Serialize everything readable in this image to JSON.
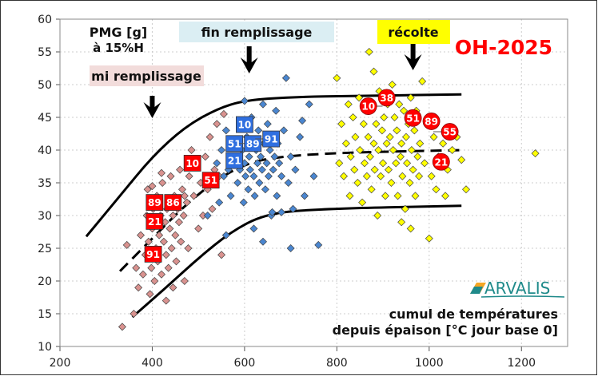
{
  "chart_data": {
    "type": "scatter",
    "title": "OH-2025",
    "ylabel_lines": [
      "PMG [g]",
      "à 15%H"
    ],
    "xlabel_lines": [
      "cumul de températures",
      "depuis épaison [°C jour base 0]"
    ],
    "xlim": [
      200,
      1300
    ],
    "ylim": [
      10,
      60
    ],
    "xticks": [
      200,
      400,
      600,
      800,
      1000,
      1200
    ],
    "yticks": [
      10,
      15,
      20,
      25,
      30,
      35,
      40,
      45,
      50,
      55,
      60
    ],
    "grid": true,
    "stage_annotations": [
      {
        "label": "mi remplissage",
        "color": "#f2dcdb",
        "arrow_x": 400
      },
      {
        "label": "fin remplissage",
        "color": "#dbeef3",
        "arrow_x": 610
      },
      {
        "label": "récolte",
        "color": "#ffff00",
        "arrow_x": 965
      }
    ],
    "series": [
      {
        "color": "#d9928f",
        "marker": "diamond",
        "points": [
          [
            335,
            13
          ],
          [
            345,
            25.5
          ],
          [
            360,
            15
          ],
          [
            365,
            22
          ],
          [
            370,
            19
          ],
          [
            375,
            27
          ],
          [
            380,
            21
          ],
          [
            385,
            24
          ],
          [
            388,
            30
          ],
          [
            390,
            34
          ],
          [
            392,
            26
          ],
          [
            395,
            18
          ],
          [
            398,
            22
          ],
          [
            400,
            28
          ],
          [
            402,
            31
          ],
          [
            405,
            20
          ],
          [
            408,
            25
          ],
          [
            410,
            33
          ],
          [
            412,
            23
          ],
          [
            415,
            27
          ],
          [
            418,
            30
          ],
          [
            420,
            21
          ],
          [
            422,
            35
          ],
          [
            425,
            26
          ],
          [
            428,
            29
          ],
          [
            430,
            24
          ],
          [
            432,
            31
          ],
          [
            435,
            22
          ],
          [
            438,
            28
          ],
          [
            440,
            36
          ],
          [
            442,
            25
          ],
          [
            445,
            30
          ],
          [
            448,
            33
          ],
          [
            450,
            27
          ],
          [
            452,
            23
          ],
          [
            455,
            31
          ],
          [
            458,
            29
          ],
          [
            460,
            37
          ],
          [
            462,
            26
          ],
          [
            465,
            34
          ],
          [
            468,
            30
          ],
          [
            470,
            20
          ],
          [
            475,
            32
          ],
          [
            478,
            25
          ],
          [
            480,
            36
          ],
          [
            485,
            40
          ],
          [
            490,
            33
          ],
          [
            495,
            38
          ],
          [
            500,
            28
          ],
          [
            505,
            35
          ],
          [
            510,
            30
          ],
          [
            515,
            39
          ],
          [
            520,
            34
          ],
          [
            525,
            42
          ],
          [
            530,
            31
          ],
          [
            535,
            37
          ],
          [
            540,
            44
          ],
          [
            545,
            36
          ],
          [
            550,
            24
          ],
          [
            555,
            45.5
          ],
          [
            420,
            36.5
          ],
          [
            400,
            34.5
          ],
          [
            470,
            33
          ],
          [
            445,
            19
          ],
          [
            430,
            17
          ]
        ]
      },
      {
        "color": "#4a86d0",
        "marker": "diamond",
        "points": [
          [
            520,
            30
          ],
          [
            530,
            35
          ],
          [
            540,
            38
          ],
          [
            545,
            32
          ],
          [
            550,
            40
          ],
          [
            555,
            36
          ],
          [
            560,
            43
          ],
          [
            565,
            37
          ],
          [
            570,
            33
          ],
          [
            575,
            39
          ],
          [
            580,
            41
          ],
          [
            585,
            35
          ],
          [
            590,
            37
          ],
          [
            592,
            44
          ],
          [
            595,
            40
          ],
          [
            598,
            32
          ],
          [
            600,
            38
          ],
          [
            602,
            36
          ],
          [
            605,
            42
          ],
          [
            608,
            34
          ],
          [
            610,
            39
          ],
          [
            612,
            37
          ],
          [
            615,
            45
          ],
          [
            618,
            41
          ],
          [
            620,
            36
          ],
          [
            622,
            33
          ],
          [
            625,
            40
          ],
          [
            628,
            38
          ],
          [
            630,
            43
          ],
          [
            632,
            35
          ],
          [
            635,
            39
          ],
          [
            638,
            37
          ],
          [
            640,
            47
          ],
          [
            642,
            41
          ],
          [
            645,
            34
          ],
          [
            648,
            38
          ],
          [
            650,
            44
          ],
          [
            652,
            36
          ],
          [
            655,
            40
          ],
          [
            658,
            30
          ],
          [
            660,
            42
          ],
          [
            662,
            37
          ],
          [
            665,
            39
          ],
          [
            668,
            46
          ],
          [
            670,
            33
          ],
          [
            672,
            41
          ],
          [
            675,
            38
          ],
          [
            680,
            36
          ],
          [
            685,
            43
          ],
          [
            690,
            51
          ],
          [
            695,
            35
          ],
          [
            700,
            39
          ],
          [
            705,
            31
          ],
          [
            710,
            37
          ],
          [
            720,
            42
          ],
          [
            730,
            33
          ],
          [
            740,
            47
          ],
          [
            750,
            36
          ],
          [
            760,
            25.5
          ],
          [
            620,
            28
          ],
          [
            640,
            26
          ],
          [
            600,
            47.5
          ],
          [
            660,
            30.5
          ],
          [
            680,
            30.5
          ],
          [
            700,
            25
          ],
          [
            725,
            44.5
          ],
          [
            560,
            27
          ]
        ]
      },
      {
        "color": "#ffff00",
        "marker": "diamond",
        "points": [
          [
            800,
            51
          ],
          [
            805,
            38
          ],
          [
            810,
            44
          ],
          [
            815,
            36
          ],
          [
            820,
            41
          ],
          [
            825,
            47
          ],
          [
            828,
            33
          ],
          [
            830,
            39
          ],
          [
            835,
            45
          ],
          [
            838,
            37
          ],
          [
            840,
            42
          ],
          [
            845,
            35
          ],
          [
            848,
            48
          ],
          [
            850,
            40
          ],
          [
            855,
            32
          ],
          [
            858,
            44
          ],
          [
            860,
            38
          ],
          [
            862,
            46
          ],
          [
            865,
            36
          ],
          [
            868,
            42
          ],
          [
            870,
            55
          ],
          [
            872,
            39
          ],
          [
            875,
            34
          ],
          [
            878,
            47
          ],
          [
            880,
            41
          ],
          [
            882,
            37
          ],
          [
            885,
            44
          ],
          [
            888,
            30
          ],
          [
            890,
            40
          ],
          [
            892,
            49
          ],
          [
            895,
            36
          ],
          [
            898,
            43
          ],
          [
            900,
            38
          ],
          [
            902,
            45
          ],
          [
            905,
            33
          ],
          [
            908,
            41
          ],
          [
            910,
            47
          ],
          [
            912,
            37
          ],
          [
            915,
            42
          ],
          [
            918,
            35
          ],
          [
            920,
            50
          ],
          [
            922,
            40
          ],
          [
            925,
            45
          ],
          [
            928,
            38
          ],
          [
            930,
            43
          ],
          [
            932,
            33
          ],
          [
            935,
            47
          ],
          [
            938,
            39
          ],
          [
            940,
            41
          ],
          [
            942,
            36
          ],
          [
            945,
            46
          ],
          [
            948,
            31
          ],
          [
            950,
            42
          ],
          [
            952,
            38
          ],
          [
            955,
            44
          ],
          [
            958,
            35
          ],
          [
            960,
            48
          ],
          [
            962,
            40
          ],
          [
            965,
            37
          ],
          [
            968,
            43
          ],
          [
            970,
            33
          ],
          [
            972,
            46
          ],
          [
            975,
            39
          ],
          [
            978,
            36
          ],
          [
            980,
            41
          ],
          [
            985,
            50.5
          ],
          [
            990,
            38
          ],
          [
            995,
            44
          ],
          [
            1000,
            26.5
          ],
          [
            1005,
            36
          ],
          [
            1010,
            42
          ],
          [
            1015,
            34
          ],
          [
            1020,
            39
          ],
          [
            1030,
            41
          ],
          [
            1035,
            33
          ],
          [
            1040,
            37
          ],
          [
            1050,
            40
          ],
          [
            1060,
            42
          ],
          [
            1070,
            38.5
          ],
          [
            1080,
            34
          ],
          [
            1230,
            39.5
          ],
          [
            940,
            29
          ],
          [
            880,
            52
          ],
          [
            960,
            28
          ]
        ]
      }
    ],
    "curves": [
      {
        "style": "solid",
        "points": [
          [
            257,
            26.8
          ],
          [
            330,
            33
          ],
          [
            400,
            39
          ],
          [
            470,
            43.5
          ],
          [
            540,
            46.3
          ],
          [
            600,
            47.6
          ],
          [
            700,
            48.1
          ],
          [
            850,
            48.3
          ],
          [
            1070,
            48.5
          ]
        ]
      },
      {
        "style": "dashed",
        "points": [
          [
            330,
            21.5
          ],
          [
            400,
            26.5
          ],
          [
            470,
            31.5
          ],
          [
            540,
            35.5
          ],
          [
            600,
            37.8
          ],
          [
            661,
            38.9
          ],
          [
            800,
            39.6
          ],
          [
            1073,
            40
          ]
        ]
      },
      {
        "style": "solid",
        "points": [
          [
            357,
            14.5
          ],
          [
            430,
            19
          ],
          [
            500,
            23.5
          ],
          [
            570,
            27.5
          ],
          [
            643,
            30.2
          ],
          [
            750,
            31
          ],
          [
            1070,
            31.5
          ]
        ]
      }
    ],
    "point_labels": [
      {
        "text": "10",
        "x": 487,
        "y": 38,
        "shape": "square",
        "color": "#ff0000"
      },
      {
        "text": "51",
        "x": 511,
        "y": 35.4,
        "shape": "square",
        "color": "#ff0000"
      },
      {
        "text": "89",
        "x": 405,
        "y": 32,
        "shape": "square",
        "color": "#ff0000"
      },
      {
        "text": "86",
        "x": 426,
        "y": 32,
        "shape": "square",
        "color": "#ff0000"
      },
      {
        "text": "21",
        "x": 405,
        "y": 29.1,
        "shape": "square",
        "color": "#ff0000"
      },
      {
        "text": "91",
        "x": 402,
        "y": 24.1,
        "shape": "square",
        "color": "#ff0000"
      },
      {
        "text": "10",
        "x": 600,
        "y": 43.9,
        "shape": "square",
        "color": "#2f6fe0"
      },
      {
        "text": "51",
        "x": 578,
        "y": 41,
        "shape": "square",
        "color": "#2f6fe0"
      },
      {
        "text": "89",
        "x": 588,
        "y": 41,
        "shape": "square",
        "color": "#2f6fe0"
      },
      {
        "text": "91",
        "x": 623,
        "y": 41.7,
        "shape": "square",
        "color": "#2f6fe0"
      },
      {
        "text": "21",
        "x": 586,
        "y": 38.4,
        "shape": "square",
        "color": "#2f6fe0"
      },
      {
        "text": "38",
        "x": 908,
        "y": 48,
        "shape": "circle",
        "color": "#ff0000"
      },
      {
        "text": "10",
        "x": 899,
        "y": 46.7,
        "shape": "circle",
        "color": "#ff0000"
      },
      {
        "text": "51",
        "x": 965,
        "y": 44.9,
        "shape": "circle",
        "color": "#ff0000"
      },
      {
        "text": "89",
        "x": 986,
        "y": 44.4,
        "shape": "circle",
        "color": "#ff0000"
      },
      {
        "text": "55",
        "x": 1009,
        "y": 42.8,
        "shape": "circle",
        "color": "#ff0000"
      },
      {
        "text": "21",
        "x": 1026,
        "y": 38.2,
        "shape": "circle",
        "color": "#ff0000"
      }
    ],
    "title_color": "#ff0000"
  },
  "logo": {
    "text": "ARVALIS",
    "color": "#1f8a8a",
    "accent": "#f5a623"
  }
}
